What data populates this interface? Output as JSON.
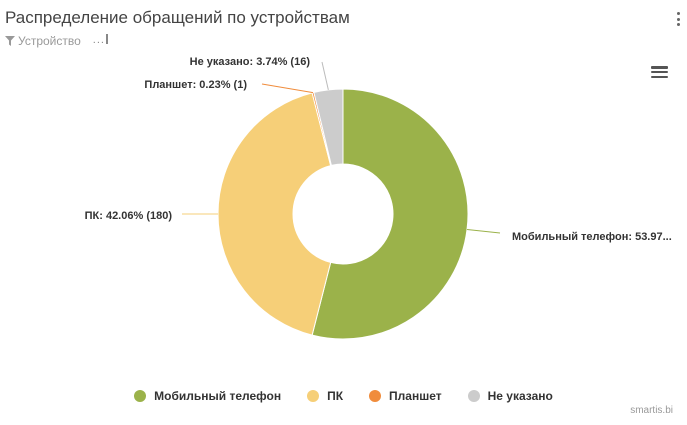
{
  "widget": {
    "title": "Распределение обращений по устройствам",
    "filter_label": "Устройство",
    "filter_extra": "..."
  },
  "icons": {
    "menu": "kebab-menu-icon",
    "filter": "funnel-icon",
    "export_menu": "hamburger-menu-icon"
  },
  "chart_data": {
    "type": "pie",
    "variant": "donut",
    "series": [
      {
        "name": "Мобильный телефон",
        "value": 231,
        "percent": 53.97,
        "label": "Мобильный телефон: 53.97...",
        "color": "#9bb24a"
      },
      {
        "name": "ПК",
        "value": 180,
        "percent": 42.06,
        "label": "ПК: 42.06% (180)",
        "color": "#f6cf78"
      },
      {
        "name": "Планшет",
        "value": 1,
        "percent": 0.23,
        "label": "Планшет: 0.23% (1)",
        "color": "#f08c3c"
      },
      {
        "name": "Не указано",
        "value": 16,
        "percent": 3.74,
        "label": "Не указано: 3.74% (16)",
        "color": "#cccccc"
      }
    ],
    "legend_position": "bottom"
  },
  "footer": {
    "credit": "smartis.bi"
  }
}
